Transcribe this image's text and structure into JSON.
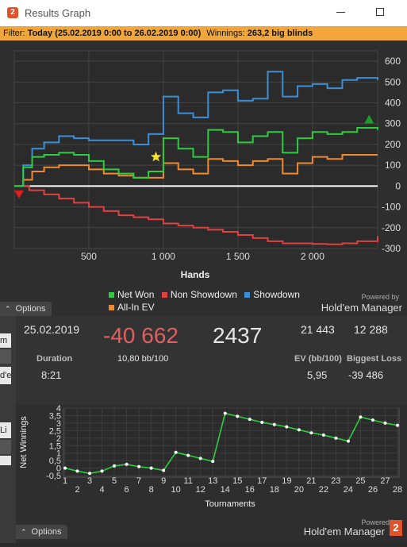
{
  "window": {
    "app_icon": "2",
    "title": "Results Graph",
    "filter_prefix": "Filter:",
    "filter_value": "Today (25.02.2019 0:00 to 26.02.2019 0:00)",
    "winnings_label": "Winnings:",
    "winnings_value": "263,2 big blinds"
  },
  "graph1": {
    "y_ticks": [
      "600",
      "500",
      "400",
      "300",
      "200",
      "100",
      "0",
      "-100",
      "-200",
      "-300"
    ],
    "x_ticks": [
      "500",
      "1 000",
      "1 500",
      "2 000"
    ],
    "xlabel": "Hands",
    "legend": [
      "Net Won",
      "Non Showdown",
      "Showdown",
      "All-In EV"
    ],
    "options_label": "Options",
    "powered_by": "Powered by",
    "brand": "Hold'em Manager"
  },
  "stats": {
    "date": "25.02.2019",
    "winnings": "-40 662",
    "hands": "2437",
    "val1": "21 443",
    "val2": "12 288",
    "duration_label": "Duration",
    "duration_value": "8:21",
    "bb100": "10,80 bb/100",
    "ev_label": "EV (bb/100)",
    "ev_value": "5,95",
    "loss_label": "Biggest Loss",
    "loss_value": "-39 486"
  },
  "graph2": {
    "ylabel": "Net Winnings",
    "xlabel": "Tournaments",
    "y_ticks": [
      "4",
      "3,5",
      "3",
      "2,5",
      "2",
      "1,5",
      "1",
      "0,5",
      "0",
      "-0,5"
    ],
    "options_label": "Options",
    "powered_by": "Powered by",
    "brand": "Hold'em Manager"
  },
  "left_strip": [
    "m",
    "d'e",
    "Li"
  ],
  "colors": {
    "net_won": "#2ecc40",
    "non_showdown": "#e04040",
    "showdown": "#3c8ed6",
    "all_in_ev": "#ef8a2e",
    "filter_bar": "#f0a63a",
    "winnings_red": "#e06060"
  },
  "chart_data": [
    {
      "type": "line",
      "x_range": [
        0,
        2437
      ],
      "ylim": [
        -300,
        650
      ],
      "xlabel": "Hands",
      "series": [
        {
          "name": "Net Won",
          "x": [
            0,
            60,
            120,
            200,
            300,
            400,
            500,
            600,
            700,
            800,
            900,
            1000,
            1100,
            1200,
            1300,
            1400,
            1500,
            1600,
            1700,
            1800,
            1900,
            2000,
            2100,
            2200,
            2300,
            2437
          ],
          "values": [
            0,
            90,
            140,
            150,
            160,
            150,
            120,
            80,
            60,
            40,
            70,
            230,
            180,
            140,
            270,
            260,
            210,
            240,
            260,
            160,
            230,
            260,
            250,
            260,
            280,
            270
          ]
        },
        {
          "name": "Non Showdown",
          "x": [
            0,
            100,
            200,
            300,
            400,
            500,
            600,
            700,
            800,
            900,
            1000,
            1100,
            1200,
            1300,
            1400,
            1500,
            1600,
            1700,
            1800,
            1900,
            2000,
            2100,
            2200,
            2300,
            2437
          ],
          "values": [
            0,
            -20,
            -40,
            -60,
            -80,
            -100,
            -120,
            -140,
            -150,
            -160,
            -180,
            -190,
            -200,
            -210,
            -220,
            -235,
            -250,
            -265,
            -275,
            -275,
            -278,
            -280,
            -275,
            -265,
            -240
          ]
        },
        {
          "name": "Showdown",
          "x": [
            0,
            60,
            120,
            200,
            300,
            400,
            500,
            600,
            700,
            800,
            900,
            1000,
            1100,
            1200,
            1300,
            1400,
            1500,
            1600,
            1700,
            1800,
            1900,
            2000,
            2100,
            2200,
            2300,
            2437
          ],
          "values": [
            0,
            100,
            180,
            210,
            240,
            230,
            220,
            220,
            220,
            200,
            250,
            430,
            350,
            330,
            450,
            460,
            410,
            420,
            550,
            430,
            480,
            490,
            470,
            510,
            520,
            510
          ]
        },
        {
          "name": "All-In EV",
          "x": [
            0,
            60,
            120,
            200,
            300,
            400,
            500,
            600,
            700,
            800,
            900,
            1000,
            1100,
            1200,
            1300,
            1400,
            1500,
            1600,
            1700,
            1800,
            1900,
            2000,
            2100,
            2200,
            2300,
            2437
          ],
          "values": [
            0,
            30,
            70,
            90,
            100,
            100,
            80,
            60,
            50,
            40,
            40,
            110,
            80,
            60,
            130,
            120,
            100,
            120,
            130,
            60,
            110,
            140,
            130,
            150,
            150,
            150
          ]
        }
      ]
    },
    {
      "type": "line",
      "x": [
        1,
        2,
        3,
        4,
        5,
        6,
        7,
        8,
        9,
        10,
        11,
        12,
        13,
        14,
        15,
        16,
        17,
        18,
        19,
        20,
        21,
        22,
        23,
        24,
        25,
        26,
        27,
        28
      ],
      "ylim": [
        -0.6,
        4
      ],
      "xlabel": "Tournaments",
      "ylabel": "Net Winnings",
      "series": [
        {
          "values": [
            0,
            -0.2,
            -0.35,
            -0.2,
            0.15,
            0.25,
            0.1,
            0,
            -0.15,
            1.05,
            0.85,
            0.65,
            0.45,
            3.65,
            3.45,
            3.25,
            3.05,
            2.9,
            2.75,
            2.55,
            2.35,
            2.2,
            2.0,
            1.8,
            3.4,
            3.2,
            3.0,
            2.85
          ]
        }
      ]
    }
  ]
}
